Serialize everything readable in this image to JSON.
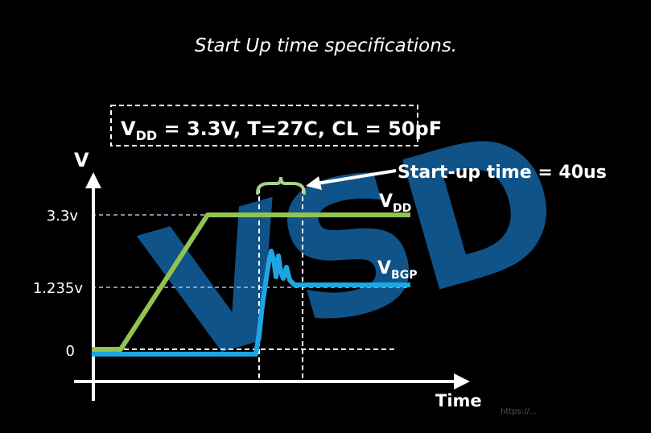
{
  "title": "Start Up time specifications.",
  "conditions": {
    "prefix": "V",
    "prefix_sub": "DD",
    "rest": " = 3.3V, T=27C, CL = 50pF"
  },
  "axes": {
    "y_label": "V",
    "x_label": "Time"
  },
  "ticks": {
    "high": "3.3v",
    "mid": "1.235v",
    "zero": "0"
  },
  "annotation": {
    "label": "Start-up time = 40us"
  },
  "series": {
    "vdd": {
      "main": "V",
      "sub": "DD"
    },
    "vbgp": {
      "main": "V",
      "sub": "BGP"
    }
  },
  "watermark": "VSD",
  "footer_text": "https://...",
  "colors": {
    "background": "#000000",
    "vdd_line": "#92c353",
    "vbgp_line": "#1ea6e3",
    "guide_line": "#b9b9e8",
    "watermark": "#1466a8",
    "brace": "#a9d18e",
    "axis": "#ffffff"
  }
}
